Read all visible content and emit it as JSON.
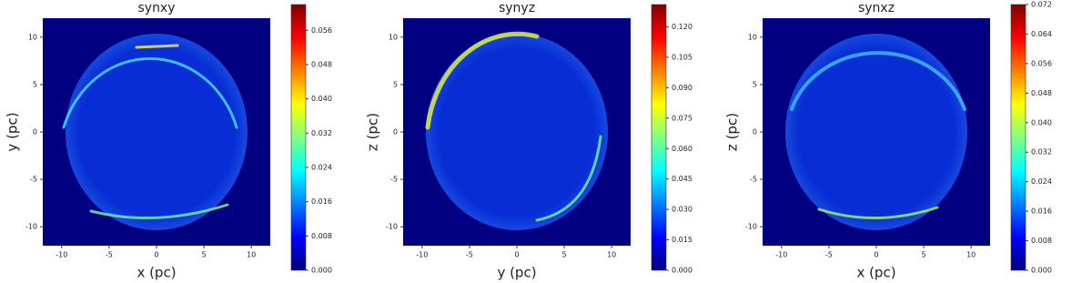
{
  "chart_data": [
    {
      "type": "heatmap",
      "title": "synxy",
      "x_label": "x (pc)",
      "y_label": "y (pc)",
      "colormap": "jet",
      "xlim": [
        -12,
        12
      ],
      "ylim": [
        -12,
        12
      ],
      "xticks": [
        -10,
        -5,
        0,
        5,
        10
      ],
      "yticks": [
        -10,
        -5,
        0,
        5,
        10
      ],
      "clim": [
        0,
        0.062
      ],
      "cticks": [
        {
          "value": 0,
          "label": "0.000"
        },
        {
          "value": 0.008,
          "label": "0.008"
        },
        {
          "value": 0.016,
          "label": "0.016"
        },
        {
          "value": 0.024,
          "label": "0.024"
        },
        {
          "value": 0.032,
          "label": "0.032"
        },
        {
          "value": 0.04,
          "label": "0.040"
        },
        {
          "value": 0.048,
          "label": "0.048"
        },
        {
          "value": 0.056,
          "label": "0.056"
        }
      ]
    },
    {
      "type": "heatmap",
      "title": "synyz",
      "x_label": "y (pc)",
      "y_label": "z (pc)",
      "colormap": "jet",
      "xlim": [
        -12,
        12
      ],
      "ylim": [
        -12,
        12
      ],
      "xticks": [
        -10,
        -5,
        0,
        5,
        10
      ],
      "yticks": [
        -10,
        -5,
        0,
        5,
        10
      ],
      "clim": [
        0,
        0.131
      ],
      "cticks": [
        {
          "value": 0,
          "label": "0.000"
        },
        {
          "value": 0.015,
          "label": "0.015"
        },
        {
          "value": 0.03,
          "label": "0.030"
        },
        {
          "value": 0.045,
          "label": "0.045"
        },
        {
          "value": 0.06,
          "label": "0.060"
        },
        {
          "value": 0.075,
          "label": "0.075"
        },
        {
          "value": 0.09,
          "label": "0.090"
        },
        {
          "value": 0.105,
          "label": "0.105"
        },
        {
          "value": 0.12,
          "label": "0.120"
        }
      ]
    },
    {
      "type": "heatmap",
      "title": "synxz",
      "x_label": "x (pc)",
      "y_label": "z (pc)",
      "colormap": "jet",
      "xlim": [
        -12,
        12
      ],
      "ylim": [
        -12,
        12
      ],
      "xticks": [
        -10,
        -5,
        0,
        5,
        10
      ],
      "yticks": [
        -10,
        -5,
        0,
        5,
        10
      ],
      "clim": [
        0,
        0.072
      ],
      "cticks": [
        {
          "value": 0,
          "label": "0.000"
        },
        {
          "value": 0.008,
          "label": "0.008"
        },
        {
          "value": 0.016,
          "label": "0.016"
        },
        {
          "value": 0.024,
          "label": "0.024"
        },
        {
          "value": 0.032,
          "label": "0.032"
        },
        {
          "value": 0.04,
          "label": "0.040"
        },
        {
          "value": 0.048,
          "label": "0.048"
        },
        {
          "value": 0.056,
          "label": "0.056"
        },
        {
          "value": 0.064,
          "label": "0.064"
        },
        {
          "value": 0.072,
          "label": "0.072"
        }
      ]
    }
  ]
}
